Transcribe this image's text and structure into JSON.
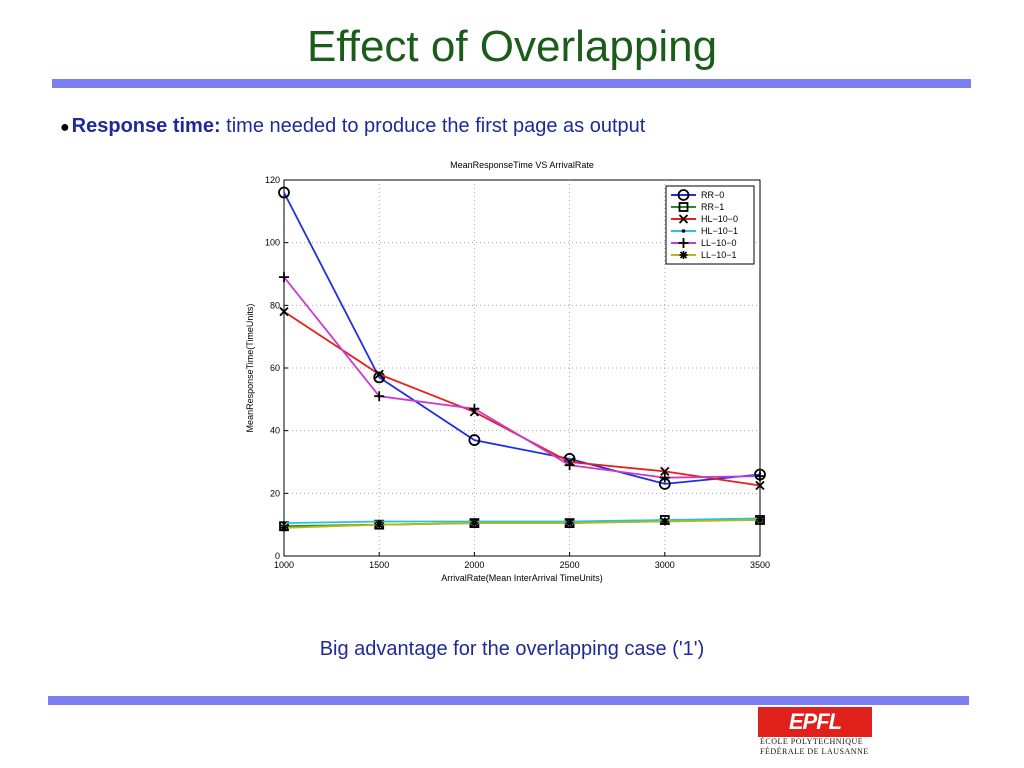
{
  "slide": {
    "title": "Effect of Overlapping",
    "bullet_bold": "Response time:",
    "bullet_text": " time needed to produce the first page as output",
    "caption": "Big advantage for the overlapping case ('1')",
    "rule_color": "#7b7ff0",
    "title_color": "#1a5c1a",
    "text_color": "#1e2a9a"
  },
  "logo": {
    "mark": "EPFL",
    "line1": "ÉCOLE POLYTECHNIQUE",
    "line2": "FÉDÉRALE DE LAUSANNE",
    "color": "#e0201b"
  },
  "chart_data": {
    "type": "line",
    "title": "MeanResponseTime VS ArrivalRate",
    "xlabel": "ArrivalRate(Mean InterArrival TimeUnits)",
    "ylabel": "MeanResponseTime(TimeUnits)",
    "x": [
      1000,
      1500,
      2000,
      2500,
      3000,
      3500
    ],
    "xlim": [
      1000,
      3500
    ],
    "ylim": [
      0,
      120
    ],
    "xticks": [
      1000,
      1500,
      2000,
      2500,
      3000,
      3500
    ],
    "yticks": [
      0,
      20,
      40,
      60,
      80,
      100,
      120
    ],
    "grid": true,
    "legend_position": "top-right",
    "series": [
      {
        "name": "RR−0",
        "color": "#1f2fe0",
        "marker": "circle",
        "values": [
          116,
          57,
          37,
          31,
          23,
          26
        ]
      },
      {
        "name": "RR−1",
        "color": "#2a8a2a",
        "marker": "square",
        "values": [
          9.5,
          10,
          10.5,
          10.5,
          11.5,
          11.5
        ]
      },
      {
        "name": "HL−10−0",
        "color": "#e8201a",
        "marker": "x",
        "values": [
          78,
          58,
          46,
          30,
          27,
          22.5
        ]
      },
      {
        "name": "HL−10−1",
        "color": "#29c4d4",
        "marker": "dot",
        "values": [
          10.5,
          11,
          11,
          11,
          11.5,
          12
        ]
      },
      {
        "name": "LL−10−0",
        "color": "#c83bd0",
        "marker": "plus",
        "values": [
          89,
          51,
          47,
          29,
          25,
          25.5
        ]
      },
      {
        "name": "LL−10−1",
        "color": "#b5b81a",
        "marker": "star",
        "values": [
          9,
          10,
          10.5,
          10.5,
          11,
          11.5
        ]
      }
    ]
  }
}
